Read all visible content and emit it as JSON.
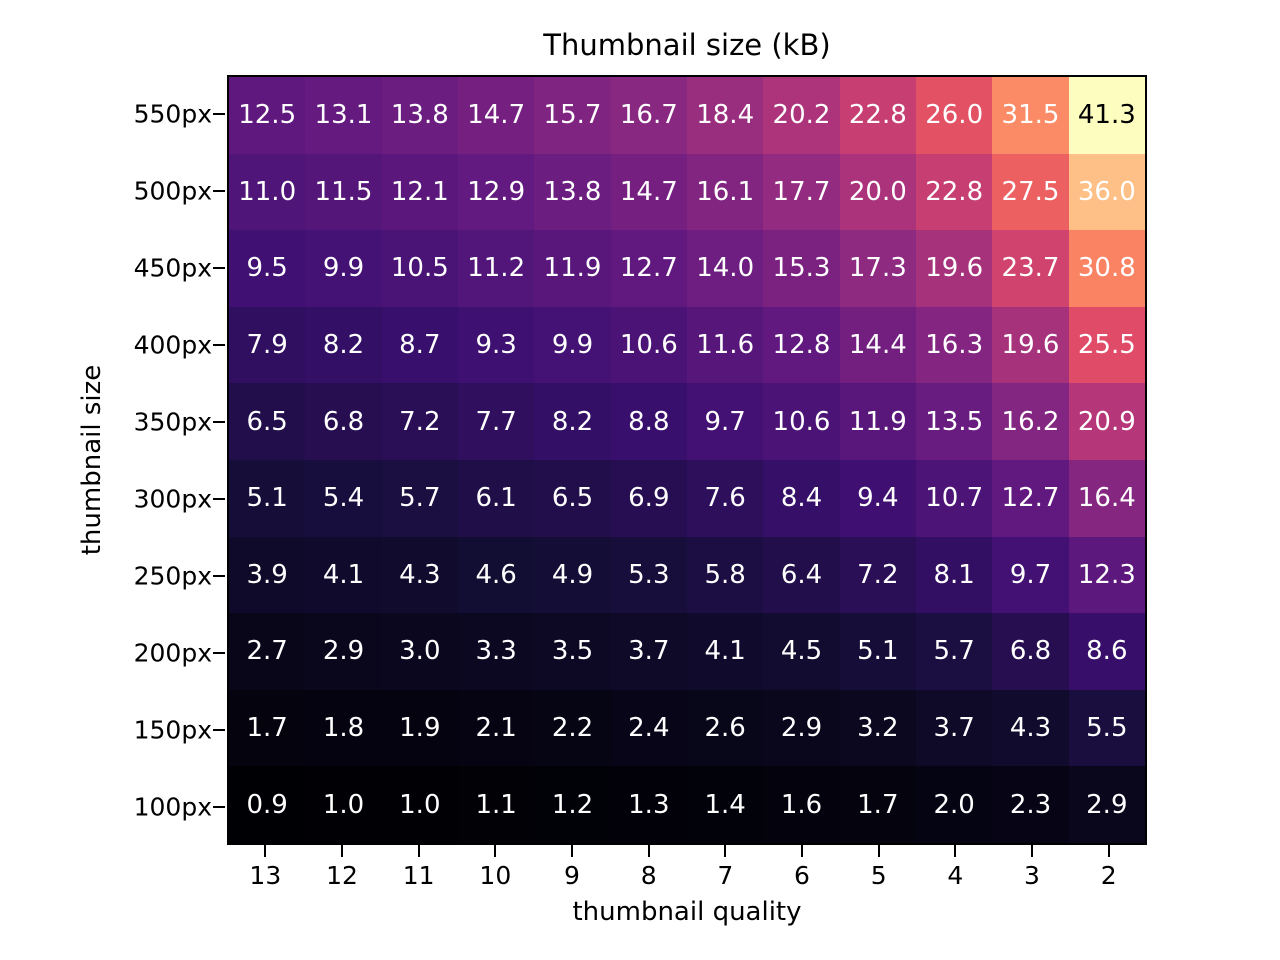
{
  "chart_data": {
    "type": "heatmap",
    "title": "Thumbnail size (kB)",
    "xlabel": "thumbnail quality",
    "ylabel": "thumbnail size",
    "x_ticks": [
      "13",
      "12",
      "11",
      "10",
      "9",
      "8",
      "7",
      "6",
      "5",
      "4",
      "3",
      "2"
    ],
    "y_ticks": [
      "550px",
      "500px",
      "450px",
      "400px",
      "350px",
      "300px",
      "250px",
      "200px",
      "150px",
      "100px"
    ],
    "values": [
      [
        12.5,
        13.1,
        13.8,
        14.7,
        15.7,
        16.7,
        18.4,
        20.2,
        22.8,
        26.0,
        31.5,
        41.3
      ],
      [
        11.0,
        11.5,
        12.1,
        12.9,
        13.8,
        14.7,
        16.1,
        17.7,
        20.0,
        22.8,
        27.5,
        36.0
      ],
      [
        9.5,
        9.9,
        10.5,
        11.2,
        11.9,
        12.7,
        14.0,
        15.3,
        17.3,
        19.6,
        23.7,
        30.8
      ],
      [
        7.9,
        8.2,
        8.7,
        9.3,
        9.9,
        10.6,
        11.6,
        12.8,
        14.4,
        16.3,
        19.6,
        25.5
      ],
      [
        6.5,
        6.8,
        7.2,
        7.7,
        8.2,
        8.8,
        9.7,
        10.6,
        11.9,
        13.5,
        16.2,
        20.9
      ],
      [
        5.1,
        5.4,
        5.7,
        6.1,
        6.5,
        6.9,
        7.6,
        8.4,
        9.4,
        10.7,
        12.7,
        16.4
      ],
      [
        3.9,
        4.1,
        4.3,
        4.6,
        4.9,
        5.3,
        5.8,
        6.4,
        7.2,
        8.1,
        9.7,
        12.3
      ],
      [
        2.7,
        2.9,
        3.0,
        3.3,
        3.5,
        3.7,
        4.1,
        4.5,
        5.1,
        5.7,
        6.8,
        8.6
      ],
      [
        1.7,
        1.8,
        1.9,
        2.1,
        2.2,
        2.4,
        2.6,
        2.9,
        3.2,
        3.7,
        4.3,
        5.5
      ],
      [
        0.9,
        1.0,
        1.0,
        1.1,
        1.2,
        1.3,
        1.4,
        1.6,
        1.7,
        2.0,
        2.3,
        2.9
      ]
    ],
    "vmin": 0.9,
    "vmax": 41.3,
    "colormap": "magma",
    "colormap_stops": [
      "#000004",
      "#140e36",
      "#3b0f70",
      "#641a80",
      "#8c2981",
      "#b73779",
      "#de4968",
      "#f7705c",
      "#fe9f6d",
      "#fecf92",
      "#fcfdbf"
    ],
    "annotation_decimals": 1,
    "text_color_light": "#ffffff",
    "text_color_dark": "#000000",
    "dark_text_threshold": 0.92,
    "grid": false,
    "legend": "none",
    "axis_ranges": {
      "x": [
        "13",
        "2"
      ],
      "y": [
        "100px",
        "550px"
      ]
    }
  }
}
